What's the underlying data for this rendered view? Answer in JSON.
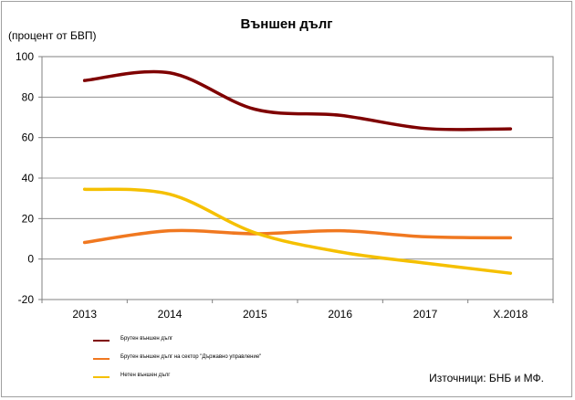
{
  "chart_data": {
    "type": "line",
    "title": "Външен дълг",
    "ylabel": "(процент от БВП)",
    "xlabel": "",
    "categories": [
      "2013",
      "2014",
      "2015",
      "2016",
      "2017",
      "X.2018"
    ],
    "ylim": [
      -20,
      100
    ],
    "yticks": [
      -20,
      0,
      20,
      40,
      60,
      80,
      100
    ],
    "grid": true,
    "legend_position": "bottom-left",
    "source": "Източници: БНБ и МФ.",
    "series": [
      {
        "name": "Брутен външен дълг",
        "color": "#7f0000",
        "values": [
          88.2,
          92.0,
          74.0,
          71.0,
          64.5,
          64.3
        ]
      },
      {
        "name": "Брутен външен дълг на сектор \"Държавно управление\"",
        "color": "#f07820",
        "values": [
          8.2,
          14.0,
          12.5,
          14.0,
          11.0,
          10.5
        ]
      },
      {
        "name": "Нетен външен дълг",
        "color": "#f5c000",
        "values": [
          34.5,
          32.0,
          13.0,
          3.5,
          -2.0,
          -7.0
        ]
      }
    ]
  }
}
